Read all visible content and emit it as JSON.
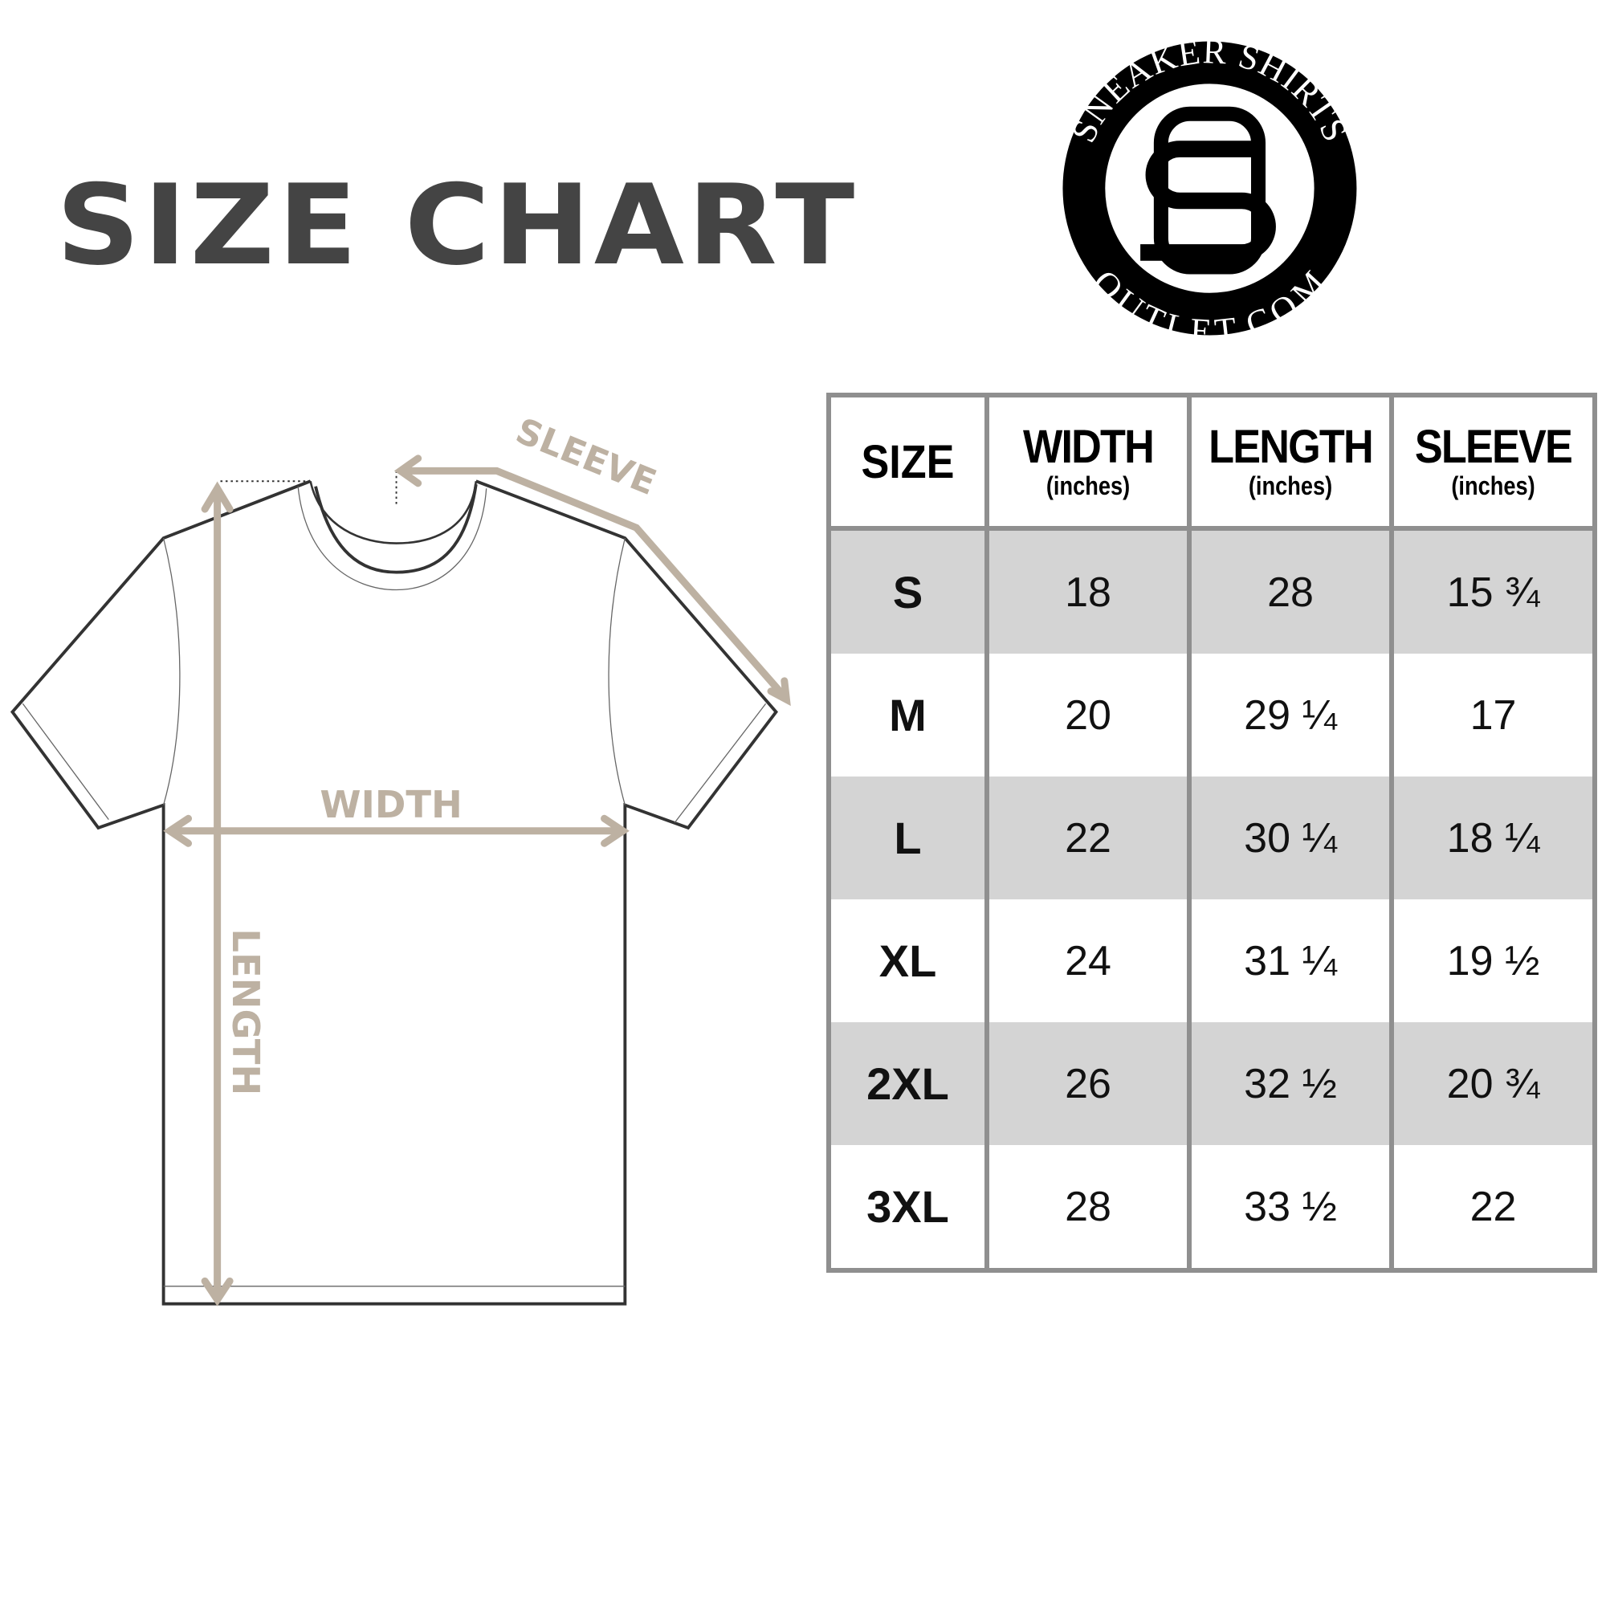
{
  "title": "SIZE CHART",
  "logo": {
    "top_text": "SNEAKER SHIRTS",
    "bottom_text": "OUTLET.COM",
    "monogram": "SO"
  },
  "diagram": {
    "labels": {
      "sleeve": "SLEEVE",
      "width": "WIDTH",
      "length": "LENGTH"
    },
    "colors": {
      "arrow": "#bdb1a2",
      "outline": "#333333"
    }
  },
  "table": {
    "headers": [
      {
        "main": "SIZE",
        "sub": ""
      },
      {
        "main": "WIDTH",
        "sub": "(inches)"
      },
      {
        "main": "LENGTH",
        "sub": "(inches)"
      },
      {
        "main": "SLEEVE",
        "sub": "(inches)"
      }
    ],
    "rows": [
      {
        "size": "S",
        "width": "18",
        "length": "28",
        "sleeve": "15 ¾"
      },
      {
        "size": "M",
        "width": "20",
        "length": "29 ¼",
        "sleeve": "17"
      },
      {
        "size": "L",
        "width": "22",
        "length": "30 ¼",
        "sleeve": "18 ¼"
      },
      {
        "size": "XL",
        "width": "24",
        "length": "31 ¼",
        "sleeve": "19 ½"
      },
      {
        "size": "2XL",
        "width": "26",
        "length": "32 ½",
        "sleeve": "20 ¾"
      },
      {
        "size": "3XL",
        "width": "28",
        "length": "33 ½",
        "sleeve": "22"
      }
    ],
    "colors": {
      "shaded_row": "#d4d4d4",
      "border": "#8f8f8f"
    }
  }
}
